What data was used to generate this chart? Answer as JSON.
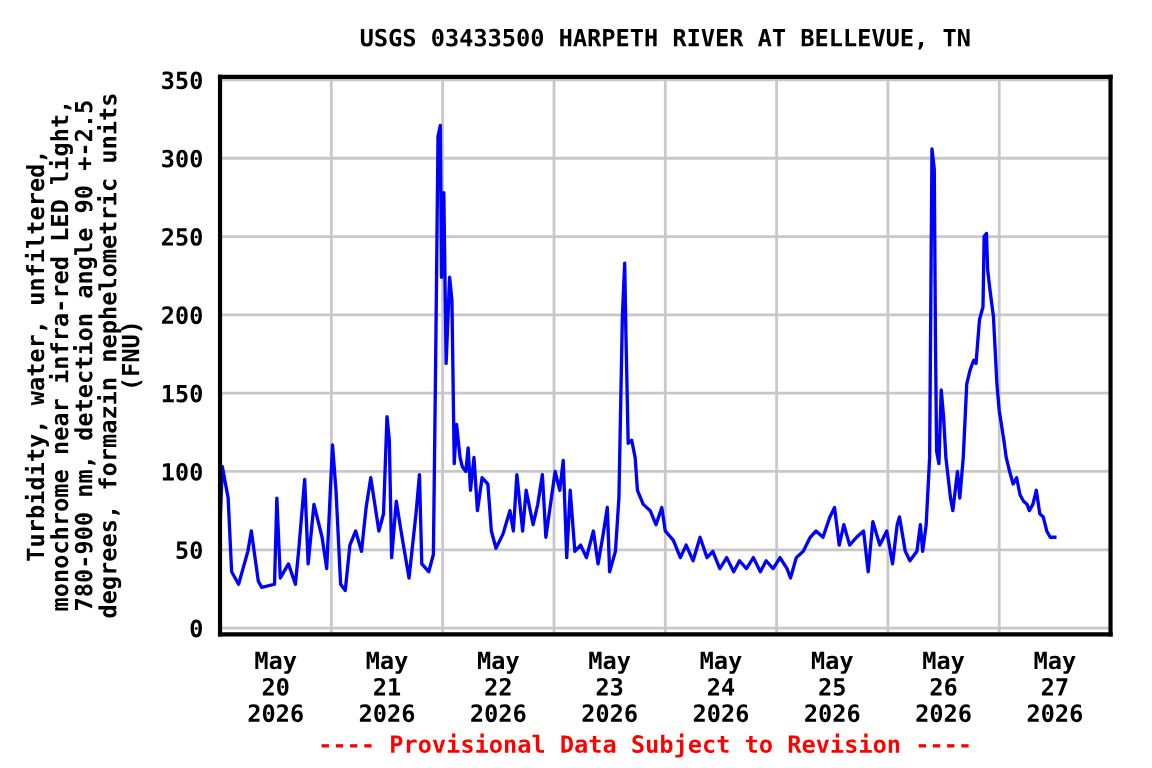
{
  "chart_data": {
    "type": "line",
    "title": "USGS 03433500 HARPETH RIVER AT BELLEVUE, TN",
    "ylabel": "Turbidity, water, unfiltered,\nmonochrome near infra-red LED light,\n780-900 nm, detection angle 90 +-2.5\ndegrees, formazin nephelometric units\n(FNU)",
    "annotations": [
      "---- Provisional Data Subject to Revision ----"
    ],
    "x": [
      "2026-05-20T00:00",
      "2026-05-20T00:30",
      "2026-05-20T01:45",
      "2026-05-20T02:30",
      "2026-05-20T04:00",
      "2026-05-20T06:00",
      "2026-05-20T06:45",
      "2026-05-20T08:15",
      "2026-05-20T09:00",
      "2026-05-20T11:45",
      "2026-05-20T12:15",
      "2026-05-20T13:00",
      "2026-05-20T14:45",
      "2026-05-20T16:15",
      "2026-05-20T17:00",
      "2026-05-20T18:15",
      "2026-05-20T19:00",
      "2026-05-20T20:15",
      "2026-05-20T22:00",
      "2026-05-20T23:00",
      "2026-05-21T00:15",
      "2026-05-21T01:00",
      "2026-05-21T02:00",
      "2026-05-21T03:00",
      "2026-05-21T04:00",
      "2026-05-21T05:15",
      "2026-05-21T06:30",
      "2026-05-21T07:30",
      "2026-05-21T08:30",
      "2026-05-21T10:15",
      "2026-05-21T11:15",
      "2026-05-21T12:00",
      "2026-05-21T12:30",
      "2026-05-21T13:00",
      "2026-05-21T14:00",
      "2026-05-21T15:15",
      "2026-05-21T16:45",
      "2026-05-21T18:15",
      "2026-05-21T19:00",
      "2026-05-21T19:30",
      "2026-05-21T21:00",
      "2026-05-21T22:00",
      "2026-05-21T22:30",
      "2026-05-21T23:00",
      "2026-05-21T23:30",
      "2026-05-21T23:45",
      "2026-05-22T00:15",
      "2026-05-22T00:45",
      "2026-05-22T01:30",
      "2026-05-22T02:00",
      "2026-05-22T02:30",
      "2026-05-22T03:00",
      "2026-05-22T03:45",
      "2026-05-22T04:15",
      "2026-05-22T05:00",
      "2026-05-22T05:30",
      "2026-05-22T06:00",
      "2026-05-22T06:45",
      "2026-05-22T07:30",
      "2026-05-22T08:30",
      "2026-05-22T09:45",
      "2026-05-22T10:30",
      "2026-05-22T11:30",
      "2026-05-22T13:00",
      "2026-05-22T14:30",
      "2026-05-22T15:15",
      "2026-05-22T16:00",
      "2026-05-22T17:15",
      "2026-05-22T18:00",
      "2026-05-22T19:30",
      "2026-05-22T20:30",
      "2026-05-22T21:30",
      "2026-05-22T22:15",
      "2026-05-22T23:15",
      "2026-05-23T00:15",
      "2026-05-23T01:15",
      "2026-05-23T02:00",
      "2026-05-23T02:45",
      "2026-05-23T03:30",
      "2026-05-23T04:30",
      "2026-05-23T05:45",
      "2026-05-23T07:00",
      "2026-05-23T08:30",
      "2026-05-23T09:30",
      "2026-05-23T10:30",
      "2026-05-23T11:30",
      "2026-05-23T12:00",
      "2026-05-23T13:15",
      "2026-05-23T14:00",
      "2026-05-23T14:45",
      "2026-05-23T15:15",
      "2026-05-23T15:30",
      "2026-05-23T16:00",
      "2026-05-23T16:45",
      "2026-05-23T17:30",
      "2026-05-23T18:00",
      "2026-05-23T19:15",
      "2026-05-23T20:45",
      "2026-05-23T22:00",
      "2026-05-23T23:15",
      "2026-05-24T00:00",
      "2026-05-24T01:45",
      "2026-05-24T03:15",
      "2026-05-24T04:30",
      "2026-05-24T06:00",
      "2026-05-24T07:30",
      "2026-05-24T09:00",
      "2026-05-24T10:15",
      "2026-05-24T11:45",
      "2026-05-24T13:15",
      "2026-05-24T14:45",
      "2026-05-24T16:00",
      "2026-05-24T17:30",
      "2026-05-24T19:00",
      "2026-05-24T20:30",
      "2026-05-24T21:45",
      "2026-05-24T23:15",
      "2026-05-25T00:45",
      "2026-05-25T02:15",
      "2026-05-25T03:00",
      "2026-05-25T04:15",
      "2026-05-25T05:45",
      "2026-05-25T07:15",
      "2026-05-25T08:30",
      "2026-05-25T10:00",
      "2026-05-25T11:30",
      "2026-05-25T12:30",
      "2026-05-25T13:30",
      "2026-05-25T14:30",
      "2026-05-25T15:45",
      "2026-05-25T17:15",
      "2026-05-25T18:45",
      "2026-05-25T19:45",
      "2026-05-25T20:45",
      "2026-05-25T22:15",
      "2026-05-25T23:45",
      "2026-05-26T01:00",
      "2026-05-26T02:00",
      "2026-05-26T02:30",
      "2026-05-26T03:45",
      "2026-05-26T04:45",
      "2026-05-26T06:15",
      "2026-05-26T07:00",
      "2026-05-26T07:30",
      "2026-05-26T08:15",
      "2026-05-26T09:00",
      "2026-05-26T09:15",
      "2026-05-26T09:30",
      "2026-05-26T10:00",
      "2026-05-26T10:15",
      "2026-05-26T10:30",
      "2026-05-26T11:00",
      "2026-05-26T11:30",
      "2026-05-26T12:00",
      "2026-05-26T12:30",
      "2026-05-26T13:30",
      "2026-05-26T14:00",
      "2026-05-26T15:00",
      "2026-05-26T15:30",
      "2026-05-26T16:15",
      "2026-05-26T17:00",
      "2026-05-26T17:45",
      "2026-05-26T18:30",
      "2026-05-26T19:00",
      "2026-05-26T19:45",
      "2026-05-26T20:30",
      "2026-05-26T20:45",
      "2026-05-26T21:15",
      "2026-05-26T21:30",
      "2026-05-26T22:00",
      "2026-05-26T22:45",
      "2026-05-26T23:30",
      "2026-05-27T00:00",
      "2026-05-27T01:00",
      "2026-05-27T01:30",
      "2026-05-27T02:15",
      "2026-05-27T03:00",
      "2026-05-27T03:45",
      "2026-05-27T04:30",
      "2026-05-27T05:15",
      "2026-05-27T06:00",
      "2026-05-27T06:30",
      "2026-05-27T07:15",
      "2026-05-27T08:00",
      "2026-05-27T08:45",
      "2026-05-27T09:30",
      "2026-05-27T10:15",
      "2026-05-27T11:00",
      "2026-05-27T11:30",
      "2026-05-27T12:00"
    ],
    "series": [
      {
        "color": "#0000ff",
        "values": [
          66,
          103,
          83,
          36,
          28,
          49,
          62,
          30,
          26,
          28,
          83,
          32,
          41,
          28,
          51,
          95,
          41,
          79,
          58,
          38,
          117,
          88,
          28,
          24,
          53,
          62,
          49,
          77,
          96,
          62,
          73,
          135,
          120,
          45,
          81,
          58,
          32,
          73,
          98,
          41,
          36,
          47,
          173,
          314,
          321,
          224,
          278,
          169,
          224,
          209,
          105,
          130,
          109,
          103,
          100,
          115,
          88,
          109,
          75,
          96,
          92,
          62,
          51,
          60,
          75,
          62,
          98,
          62,
          88,
          66,
          79,
          98,
          58,
          79,
          100,
          88,
          107,
          45,
          88,
          49,
          53,
          45,
          62,
          41,
          58,
          77,
          36,
          49,
          83,
          199,
          233,
          190,
          118,
          120,
          109,
          88,
          79,
          75,
          66,
          77,
          62,
          56,
          45,
          53,
          43,
          58,
          45,
          49,
          38,
          45,
          36,
          43,
          38,
          45,
          36,
          43,
          38,
          45,
          38,
          32,
          45,
          49,
          58,
          62,
          58,
          71,
          77,
          53,
          66,
          53,
          58,
          62,
          36,
          68,
          53,
          62,
          41,
          66,
          71,
          49,
          43,
          49,
          66,
          49,
          66,
          109,
          207,
          306,
          293,
          186,
          113,
          105,
          152,
          135,
          109,
          83,
          75,
          100,
          83,
          109,
          156,
          165,
          171,
          169,
          197,
          205,
          250,
          252,
          229,
          216,
          199,
          156,
          139,
          120,
          109,
          100,
          92,
          96,
          85,
          81,
          79,
          75,
          79,
          88,
          73,
          71,
          62,
          58,
          58,
          58
        ]
      }
    ],
    "xlim": [
      "2026-05-20",
      "2026-05-28"
    ],
    "xticks": [
      {
        "value": "2026-05-21",
        "label": null
      },
      {
        "value": "2026-05-22",
        "label": null
      },
      {
        "value": "2026-05-23",
        "label": null
      },
      {
        "value": "2026-05-24",
        "label": null
      },
      {
        "value": "2026-05-25",
        "label": null
      },
      {
        "value": "2026-05-26",
        "label": null
      },
      {
        "value": "2026-05-27",
        "label": null
      },
      {
        "value": "2026-05-20T12:00",
        "label": "May\n20\n2026"
      },
      {
        "value": "2026-05-21T12:00",
        "label": "May\n21\n2026"
      },
      {
        "value": "2026-05-22T12:00",
        "label": "May\n22\n2026"
      },
      {
        "value": "2026-05-23T12:00",
        "label": "May\n23\n2026"
      },
      {
        "value": "2026-05-24T12:00",
        "label": "May\n24\n2026"
      },
      {
        "value": "2026-05-25T12:00",
        "label": "May\n25\n2026"
      },
      {
        "value": "2026-05-26T12:00",
        "label": "May\n26\n2026"
      },
      {
        "value": "2026-05-27T12:00",
        "label": "May\n27\n2026"
      }
    ],
    "ylim": [
      -4,
      352
    ],
    "yticks": [
      0,
      50,
      100,
      150,
      200,
      250,
      300,
      350
    ],
    "grid": true,
    "line_style": "solid",
    "marker": "none",
    "legend": false
  }
}
